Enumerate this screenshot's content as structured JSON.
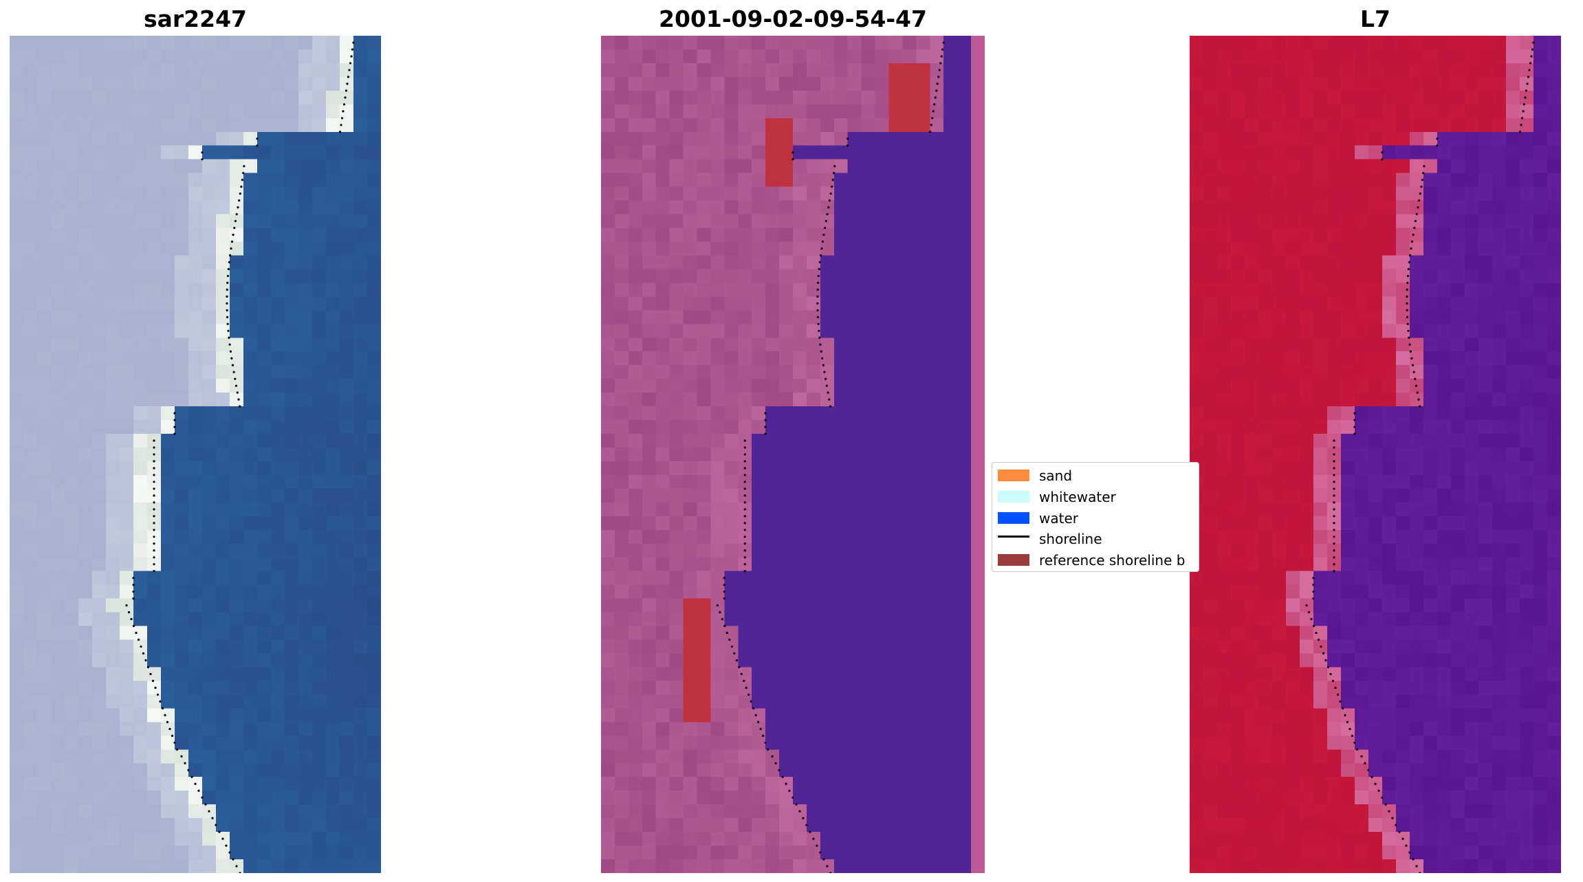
{
  "panels": [
    {
      "title": "sar2247",
      "palette": "rgb"
    },
    {
      "title": "2001-09-02-09-54-47",
      "palette": "classified"
    },
    {
      "title": "L7",
      "palette": "ndwi"
    }
  ],
  "legend": {
    "items": [
      {
        "label": "sand",
        "color": "#ff8b3d",
        "kind": "patch"
      },
      {
        "label": "whitewater",
        "color": "#ccfbff",
        "kind": "patch"
      },
      {
        "label": "water",
        "color": "#0051ff",
        "kind": "patch"
      },
      {
        "label": "shoreline",
        "color": "#000000",
        "kind": "line"
      },
      {
        "label": "reference shoreline b",
        "color": "#9b3a3a",
        "kind": "patch"
      }
    ]
  },
  "colors": {
    "land_rgb": "#a9b3d0",
    "water_rgb": "#2c5f9e",
    "land_class": "#a24a86",
    "water_class": "#512595",
    "ref_buffer": "#c0323f",
    "land_ndwi": "#c0143a",
    "water_ndwi": "#5a1690"
  }
}
